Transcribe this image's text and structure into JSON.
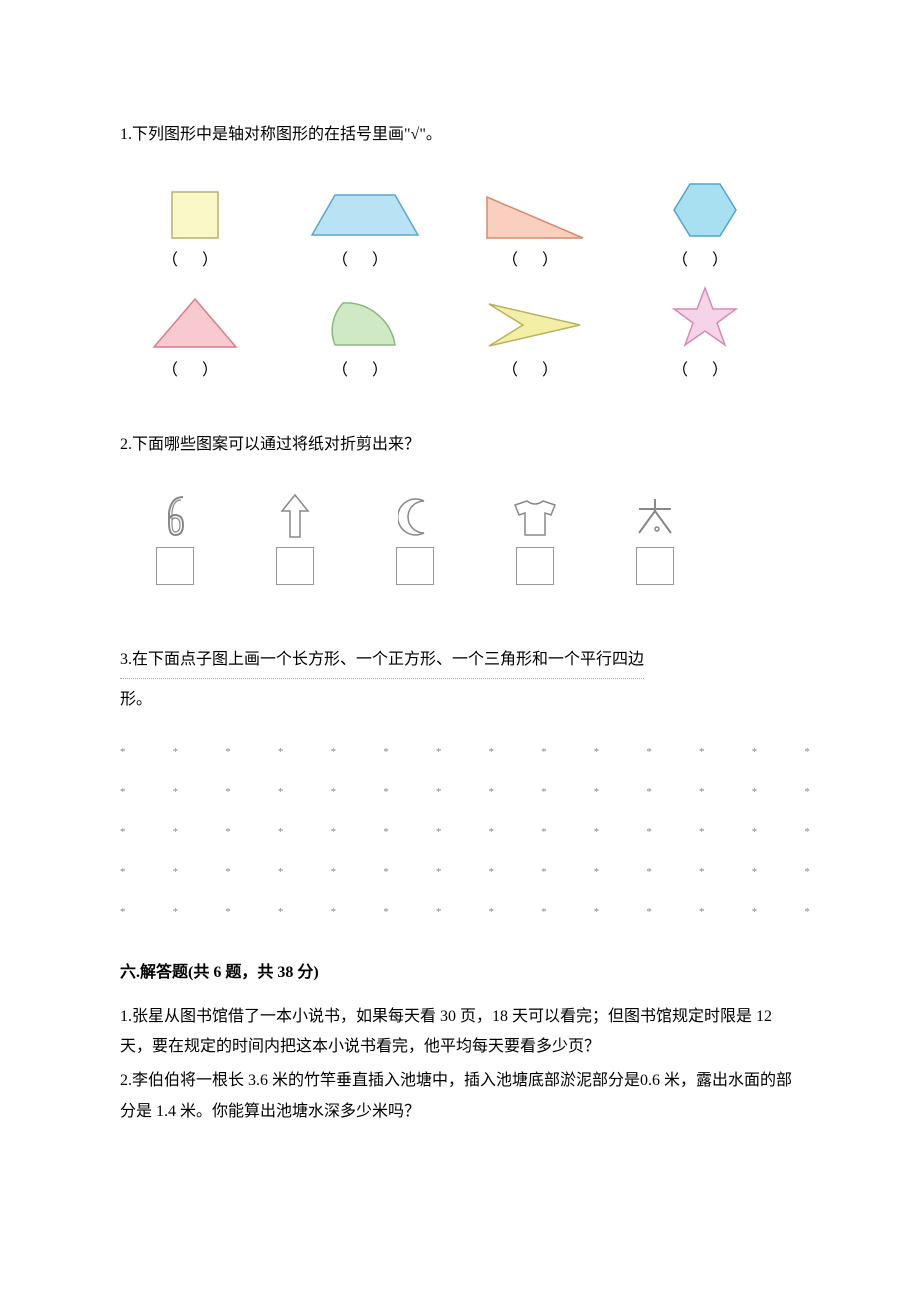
{
  "colors": {
    "text": "#000000",
    "bg": "#ffffff",
    "dot": "#888888",
    "shape_stroke": "#9aa5ad"
  },
  "q1": {
    "prompt": "1.下列图形中是轴对称图形的在括号里画\"√\"。",
    "paren": "（ ）",
    "shapes": [
      {
        "name": "square",
        "fill": "#fbf8c8",
        "stroke": "#b7b16d"
      },
      {
        "name": "trapezoid",
        "fill": "#b9e3f4",
        "stroke": "#5aa6cd"
      },
      {
        "name": "right-triangle",
        "fill": "#f9d0bf",
        "stroke": "#d98a6c"
      },
      {
        "name": "hexagon",
        "fill": "#a8dff1",
        "stroke": "#4fa6c8"
      },
      {
        "name": "iso-triangle",
        "fill": "#f8c9ce",
        "stroke": "#d87e8b"
      },
      {
        "name": "leaf",
        "fill": "#d0e9c5",
        "stroke": "#8bb97c"
      },
      {
        "name": "arrowhead",
        "fill": "#f3efa7",
        "stroke": "#b9b25e"
      },
      {
        "name": "star",
        "fill": "#f6d4e7",
        "stroke": "#d889b6"
      }
    ]
  },
  "q2": {
    "prompt": "2.下面哪些图案可以通过将纸对折剪出来？",
    "icons": [
      {
        "name": "digit-6"
      },
      {
        "name": "up-arrow"
      },
      {
        "name": "crescent"
      },
      {
        "name": "tshirt"
      },
      {
        "name": "char-tai"
      }
    ]
  },
  "q3": {
    "prompt_line1": "3.在下面点子图上画一个长方形、一个正方形、一个三角形和一个平行四边",
    "prompt_line2": "形。",
    "dots": {
      "rows": 5,
      "cols": 14
    }
  },
  "section6": {
    "title": "六.解答题(共 6 题，共 38 分)",
    "p1": "1.张星从图书馆借了一本小说书，如果每天看 30 页，18 天可以看完；但图书馆规定时限是 12 天，要在规定的时间内把这本小说书看完，他平均每天要看多少页？",
    "p2": "2.李伯伯将一根长 3.6 米的竹竿垂直插入池塘中，插入池塘底部淤泥部分是0.6 米，露出水面的部分是 1.4 米。你能算出池塘水深多少米吗？"
  }
}
